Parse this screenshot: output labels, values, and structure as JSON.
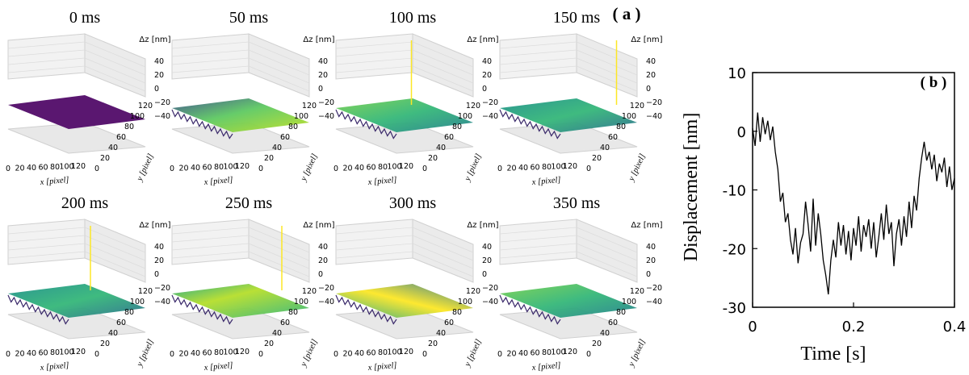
{
  "panel_a": {
    "label": "( a )",
    "time_labels": [
      "0 ms",
      "50 ms",
      "100 ms",
      "150 ms",
      "200 ms",
      "250 ms",
      "300 ms",
      "350 ms"
    ],
    "zlabel": "Δz [nm]",
    "xlabel": "x [pixel]",
    "ylabel": "y [pixel]",
    "z_ticks": [
      "40",
      "20",
      "0",
      "−20",
      "−40"
    ],
    "x_ticks": [
      "0",
      "20",
      "40",
      "60",
      "80",
      "100",
      "120"
    ],
    "y_ticks": [
      "0",
      "20",
      "40",
      "60",
      "80",
      "100",
      "120"
    ],
    "surface_colors": {
      "low": "#440154",
      "mid": "#21918c",
      "high": "#fde725",
      "flat": "#5a1770"
    }
  },
  "chart_data": {
    "type": "line",
    "label": "( b )",
    "xlabel": "Time [s]",
    "ylabel": "Displacement [nm]",
    "xlim": [
      0,
      0.4
    ],
    "ylim": [
      -30,
      10
    ],
    "x_ticks": [
      0,
      0.2,
      0.4
    ],
    "x_tick_labels": [
      "0",
      "0.2",
      "0.4"
    ],
    "y_ticks": [
      10,
      0,
      -10,
      -20,
      -30
    ],
    "y_tick_labels": [
      "10",
      "0",
      "-10",
      "-20",
      "-30"
    ],
    "series": [
      {
        "name": "displacement",
        "color": "#000000",
        "x": [
          0,
          0.005,
          0.01,
          0.015,
          0.02,
          0.025,
          0.03,
          0.035,
          0.04,
          0.045,
          0.05,
          0.055,
          0.06,
          0.065,
          0.07,
          0.075,
          0.08,
          0.085,
          0.09,
          0.095,
          0.1,
          0.105,
          0.11,
          0.115,
          0.12,
          0.125,
          0.13,
          0.135,
          0.14,
          0.145,
          0.15,
          0.155,
          0.16,
          0.165,
          0.17,
          0.175,
          0.18,
          0.185,
          0.19,
          0.195,
          0.2,
          0.205,
          0.21,
          0.215,
          0.22,
          0.225,
          0.23,
          0.235,
          0.24,
          0.245,
          0.25,
          0.255,
          0.26,
          0.265,
          0.27,
          0.275,
          0.28,
          0.285,
          0.29,
          0.295,
          0.3,
          0.305,
          0.31,
          0.315,
          0.32,
          0.325,
          0.33,
          0.335,
          0.34,
          0.345,
          0.35,
          0.355,
          0.36,
          0.365,
          0.37,
          0.375,
          0.38,
          0.385,
          0.39,
          0.395,
          0.4
        ],
        "y": [
          0.5,
          -2.5,
          3.2,
          -1.8,
          2.4,
          -0.5,
          1.8,
          -1.5,
          0.8,
          -3.5,
          -6.5,
          -12.0,
          -10.5,
          -15.5,
          -14.0,
          -18.5,
          -21.0,
          -16.5,
          -22.5,
          -19.0,
          -17.5,
          -12.0,
          -16.0,
          -20.5,
          -11.5,
          -19.5,
          -14.0,
          -17.5,
          -22.0,
          -24.5,
          -27.8,
          -22.0,
          -18.5,
          -21.5,
          -15.5,
          -19.5,
          -16.0,
          -21.0,
          -17.0,
          -22.0,
          -16.5,
          -19.5,
          -14.5,
          -20.5,
          -16.0,
          -18.0,
          -15.0,
          -20.0,
          -15.5,
          -21.5,
          -18.0,
          -14.0,
          -18.5,
          -12.5,
          -17.5,
          -15.5,
          -23.0,
          -17.5,
          -15.0,
          -19.5,
          -14.5,
          -18.0,
          -12.0,
          -16.5,
          -11.0,
          -13.5,
          -8.0,
          -4.5,
          -1.8,
          -5.0,
          -3.5,
          -6.5,
          -4.0,
          -8.5,
          -5.5,
          -7.0,
          -4.5,
          -9.5,
          -6.0,
          -10.0,
          -8.0
        ]
      }
    ]
  }
}
